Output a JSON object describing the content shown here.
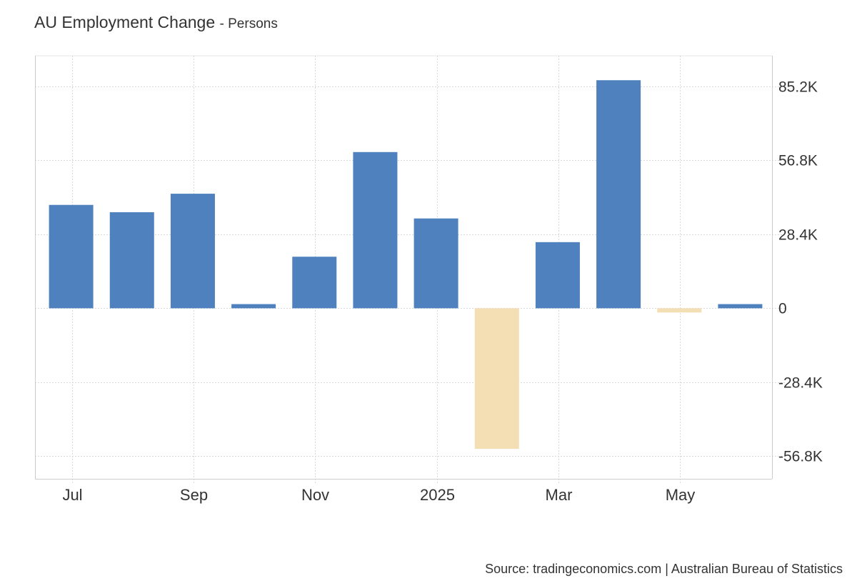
{
  "chart_data": {
    "type": "bar",
    "title": "AU Employment Change",
    "subtitle": "- Persons",
    "xlabel": "",
    "ylabel": "",
    "x_tick_labels": [
      "Jul",
      "Sep",
      "Nov",
      "2025",
      "Mar",
      "May"
    ],
    "y_tick_labels": [
      "85.2K",
      "56.8K",
      "28.4K",
      "0",
      "-28.4K",
      "-56.8K"
    ],
    "y_ticks": [
      85200,
      56800,
      28400,
      0,
      -28400,
      -56800
    ],
    "ylim": [
      -65500,
      97000
    ],
    "grid": true,
    "legend": "none",
    "categories": [
      "Jul 2024",
      "Aug 2024",
      "Sep 2024",
      "Oct 2024",
      "Nov 2024",
      "Dec 2024",
      "Jan 2025",
      "Feb 2025",
      "Mar 2025",
      "Apr 2025",
      "May 2025",
      "Jun 2025"
    ],
    "values": [
      39700,
      36900,
      44000,
      1600,
      19800,
      60000,
      34500,
      -54000,
      25400,
      87600,
      -1600,
      1600
    ],
    "positive_color": "#4e81bd",
    "negative_color": "#f4deb3"
  },
  "source": "Source: tradingeconomics.com | Australian Bureau of Statistics"
}
